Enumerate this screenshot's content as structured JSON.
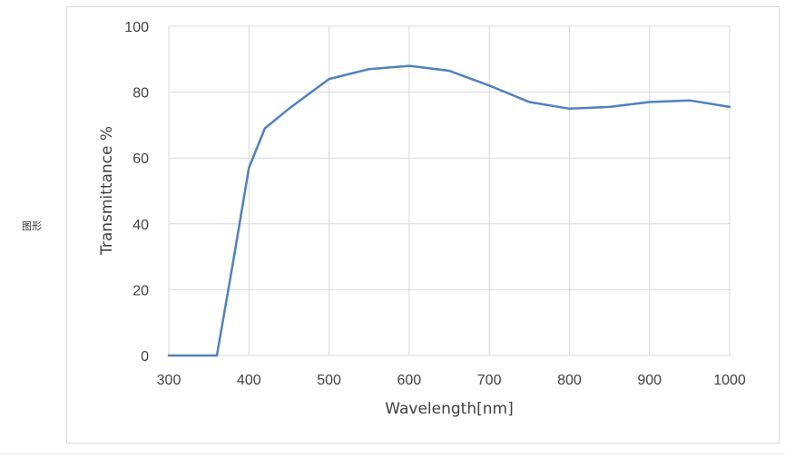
{
  "side_label": "图形",
  "chart_data": {
    "type": "line",
    "title": "",
    "xlabel": "Wavelength[nm]",
    "ylabel": "Transmittance %",
    "xlim": [
      300,
      1000
    ],
    "ylim": [
      0,
      100
    ],
    "x_ticks": [
      300,
      400,
      500,
      600,
      700,
      800,
      900,
      1000
    ],
    "y_ticks": [
      0,
      20,
      40,
      60,
      80,
      100
    ],
    "grid": true,
    "legend": "none",
    "series": [
      {
        "color": "#4f81bd",
        "points": [
          [
            300,
            0
          ],
          [
            360,
            0
          ],
          [
            380,
            28
          ],
          [
            400,
            57
          ],
          [
            420,
            69
          ],
          [
            450,
            75
          ],
          [
            500,
            84
          ],
          [
            550,
            87
          ],
          [
            600,
            88
          ],
          [
            650,
            86.5
          ],
          [
            700,
            82
          ],
          [
            750,
            77
          ],
          [
            800,
            75
          ],
          [
            850,
            75.5
          ],
          [
            900,
            77
          ],
          [
            950,
            77.5
          ],
          [
            1000,
            75.5
          ]
        ]
      }
    ]
  }
}
